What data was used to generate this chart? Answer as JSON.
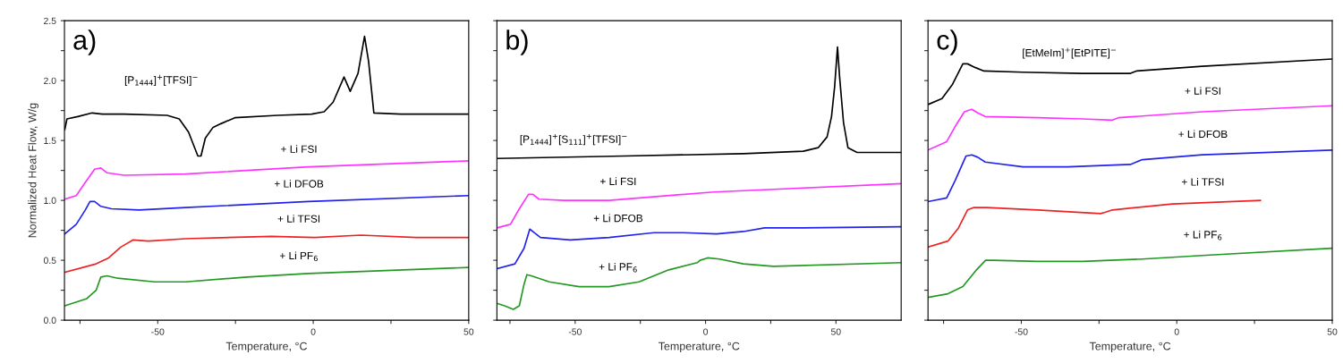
{
  "chart_data": [
    {
      "type": "line",
      "title": "a)",
      "xlabel": "Temperature, °C",
      "ylabel": "Normalized Heat Flow, W/g",
      "xlim": [
        -80,
        50
      ],
      "ylim": [
        0,
        2.5
      ],
      "xticks": [
        {
          "value": -75,
          "label": null
        },
        -50,
        {
          "value": -25,
          "label": null
        },
        0,
        {
          "value": 25,
          "label": null
        },
        50
      ],
      "yticks": [
        {
          "value": 0,
          "label": "0.0"
        },
        {
          "value": 0.25,
          "label": null
        },
        {
          "value": 0.5,
          "label": "0.5"
        },
        {
          "value": 0.75,
          "label": null
        },
        {
          "value": 1,
          "label": "1.0"
        },
        {
          "value": 1.25,
          "label": null
        },
        {
          "value": 1.5,
          "label": "1.5"
        },
        {
          "value": 1.75,
          "label": null
        },
        {
          "value": 2,
          "label": "2.0"
        },
        {
          "value": 2.25,
          "label": null
        },
        {
          "value": 2.5,
          "label": "2.5"
        }
      ],
      "grid": false,
      "legend": false,
      "series": [
        {
          "name": "[P$_{1444}$]$^{+}$[TFSI]$^{−}$",
          "color": "#000000",
          "x": [
            -79.9,
            -79.2,
            -75.7,
            -71.1,
            -67.8,
            -60.9,
            -47.0,
            -43.1,
            -40.1,
            -37.1,
            -36.1,
            -34.7,
            -32.2,
            -29.7,
            -25.2,
            -11.4,
            -0.5,
            3.5,
            6.4,
            9.9,
            11.9,
            14.4,
            16.5,
            17.8,
            19.5,
            28.2,
            50
          ],
          "values": [
            1.59,
            1.68,
            1.7,
            1.73,
            1.72,
            1.72,
            1.71,
            1.68,
            1.57,
            1.37,
            1.37,
            1.52,
            1.61,
            1.64,
            1.69,
            1.71,
            1.72,
            1.74,
            1.82,
            2.03,
            1.91,
            2.06,
            2.37,
            2.16,
            1.73,
            1.72,
            1.72
          ]
        },
        {
          "name": "+ Li FSI",
          "color": "#ff33ff",
          "x": [
            -79.9,
            -76.2,
            -73.3,
            -70.3,
            -68.3,
            -66.3,
            -60.9,
            -41.1,
            -1.5,
            50
          ],
          "values": [
            1.01,
            1.04,
            1.15,
            1.26,
            1.27,
            1.23,
            1.21,
            1.22,
            1.28,
            1.33
          ]
        },
        {
          "name": "+ Li DFOB",
          "color": "#2222ee",
          "x": [
            -79.9,
            -76.2,
            -73.3,
            -71.8,
            -70.3,
            -68.3,
            -64.9,
            -56,
            -41.1,
            -1.5,
            50
          ],
          "values": [
            0.72,
            0.8,
            0.92,
            0.99,
            0.99,
            0.95,
            0.93,
            0.92,
            0.94,
            0.99,
            1.04
          ]
        },
        {
          "name": "+ Li TFSI",
          "color": "#ee2222",
          "x": [
            -79.9,
            -69.8,
            -65.8,
            -61.9,
            -57.9,
            -53,
            -41.1,
            -13.4,
            0.5,
            15.3,
            33.2,
            50
          ],
          "values": [
            0.4,
            0.47,
            0.52,
            0.61,
            0.67,
            0.66,
            0.68,
            0.7,
            0.69,
            0.71,
            0.69,
            0.69
          ]
        },
        {
          "name": "+ Li PF$_{6}$",
          "color": "#229922",
          "x": [
            -79.9,
            -72.8,
            -69.8,
            -68.3,
            -66.3,
            -62.9,
            -51,
            -41.1,
            -21.3,
            -1.5,
            50
          ],
          "values": [
            0.12,
            0.18,
            0.25,
            0.36,
            0.37,
            0.35,
            0.32,
            0.32,
            0.36,
            0.39,
            0.44
          ]
        }
      ]
    },
    {
      "type": "line",
      "title": "b)",
      "xlabel": "Temperature, °C",
      "xlim": [
        -80,
        75
      ],
      "ylim": [
        0,
        2.5
      ],
      "tick_labels": "x",
      "xticks": [
        {
          "value": -75,
          "label": null
        },
        -50,
        {
          "value": -25,
          "label": null
        },
        0,
        {
          "value": 25,
          "label": null
        },
        50
      ],
      "yticks": [
        0,
        0.25,
        0.5,
        0.75,
        1,
        1.25,
        1.5,
        1.75,
        2,
        2.25,
        2.5
      ],
      "grid": false,
      "legend": false,
      "series": [
        {
          "name": "[P$_{1444}$]$^{+}$[S$_{111}$]$^{+}$[TFSI]$^{−}$",
          "color": "#000000",
          "x": [
            -80,
            -31.3,
            14.5,
            37.5,
            43.2,
            46.6,
            48.3,
            49.5,
            50.6,
            51.4,
            52.9,
            54.6,
            58.1,
            75
          ],
          "values": [
            1.35,
            1.37,
            1.39,
            1.41,
            1.44,
            1.53,
            1.7,
            1.95,
            2.28,
            2.03,
            1.65,
            1.44,
            1.4,
            1.4
          ]
        },
        {
          "name": "+ Li FSI",
          "color": "#ff33ff",
          "x": [
            -80,
            -74.8,
            -71.4,
            -67.9,
            -66.2,
            -63.9,
            -54.2,
            -37,
            3.1,
            75
          ],
          "values": [
            0.77,
            0.8,
            0.93,
            1.05,
            1.05,
            1.01,
            1.0,
            1.0,
            1.07,
            1.14
          ]
        },
        {
          "name": "+ Li DFOB",
          "color": "#2222ee",
          "x": [
            -80,
            -73.1,
            -69.6,
            -67.4,
            -65.6,
            -63.3,
            -51.9,
            -37,
            -19.8,
            -8.4,
            4.2,
            14.5,
            22.6,
            37.5,
            75
          ],
          "values": [
            0.43,
            0.47,
            0.6,
            0.76,
            0.73,
            0.69,
            0.67,
            0.69,
            0.73,
            0.73,
            0.72,
            0.74,
            0.77,
            0.77,
            0.78
          ]
        },
        {
          "name": "+ Li PF$_{6}$",
          "color": "#229922",
          "x": [
            -80,
            -77.1,
            -73.7,
            -71.4,
            -69.6,
            -68.5,
            -66.8,
            -59.9,
            -48.5,
            -37,
            -25.5,
            -14.1,
            -3.2,
            -2.1,
            0.8,
            5.4,
            14.5,
            26,
            75
          ],
          "values": [
            0.14,
            0.12,
            0.09,
            0.12,
            0.3,
            0.38,
            0.37,
            0.32,
            0.28,
            0.28,
            0.32,
            0.42,
            0.48,
            0.5,
            0.52,
            0.51,
            0.47,
            0.45,
            0.48
          ]
        }
      ]
    },
    {
      "type": "line",
      "title": "c)",
      "xlabel": "Temperature, °C",
      "xlim": [
        -80,
        50
      ],
      "ylim": [
        0,
        2.5
      ],
      "tick_labels": "x",
      "xticks": [
        {
          "value": -75,
          "label": null
        },
        -50,
        {
          "value": -25,
          "label": null
        },
        0,
        {
          "value": 25,
          "label": null
        },
        50
      ],
      "yticks": [
        0,
        0.25,
        0.5,
        0.75,
        1,
        1.25,
        1.5,
        1.75,
        2,
        2.25,
        2.5
      ],
      "grid": false,
      "legend": false,
      "series": [
        {
          "name": "[EtMeIm]$^{+}$[EtPITE]$^{−}$",
          "color": "#000000",
          "x": [
            -80,
            -75.5,
            -72.1,
            -68.8,
            -67.3,
            -64.9,
            -62,
            -49.5,
            -30.3,
            -14.9,
            -13,
            8.2,
            50
          ],
          "values": [
            1.8,
            1.85,
            1.97,
            2.14,
            2.14,
            2.11,
            2.08,
            2.07,
            2.06,
            2.06,
            2.08,
            2.12,
            2.18
          ]
        },
        {
          "name": "+ Li FSI",
          "color": "#ff33ff",
          "x": [
            -80,
            -74,
            -71.2,
            -68.3,
            -65.9,
            -64,
            -61.6,
            -44.9,
            -30.3,
            -20.7,
            -18.8,
            8.2,
            50
          ],
          "values": [
            1.42,
            1.49,
            1.62,
            1.74,
            1.76,
            1.73,
            1.7,
            1.69,
            1.68,
            1.67,
            1.69,
            1.74,
            1.79
          ]
        },
        {
          "name": "+ Li DFOB",
          "color": "#2222ee",
          "x": [
            -80,
            -74,
            -71.2,
            -67.8,
            -65.9,
            -64,
            -61.6,
            -49.5,
            -35.1,
            -14.9,
            -11.1,
            8.2,
            50
          ],
          "values": [
            0.99,
            1.02,
            1.17,
            1.37,
            1.38,
            1.36,
            1.32,
            1.28,
            1.28,
            1.3,
            1.34,
            1.38,
            1.42
          ]
        },
        {
          "name": "+ Li TFSI",
          "color": "#ee2222",
          "x": [
            -80,
            -73.6,
            -70.2,
            -67.3,
            -65.4,
            -61.1,
            -44.7,
            -24.5,
            -23.1,
            -20.7,
            -1.4,
            26.9
          ],
          "values": [
            0.61,
            0.66,
            0.77,
            0.92,
            0.94,
            0.94,
            0.92,
            0.89,
            0.9,
            0.92,
            0.97,
            1.0
          ]
        },
        {
          "name": "+ Li PF$_{6}$",
          "color": "#229922",
          "x": [
            -80,
            -73.6,
            -68.8,
            -64.4,
            -61.5,
            -59.1,
            -44.7,
            -30.3,
            -11.1,
            8.2,
            50
          ],
          "values": [
            0.19,
            0.22,
            0.28,
            0.42,
            0.5,
            0.5,
            0.49,
            0.49,
            0.51,
            0.54,
            0.6
          ]
        }
      ]
    }
  ]
}
